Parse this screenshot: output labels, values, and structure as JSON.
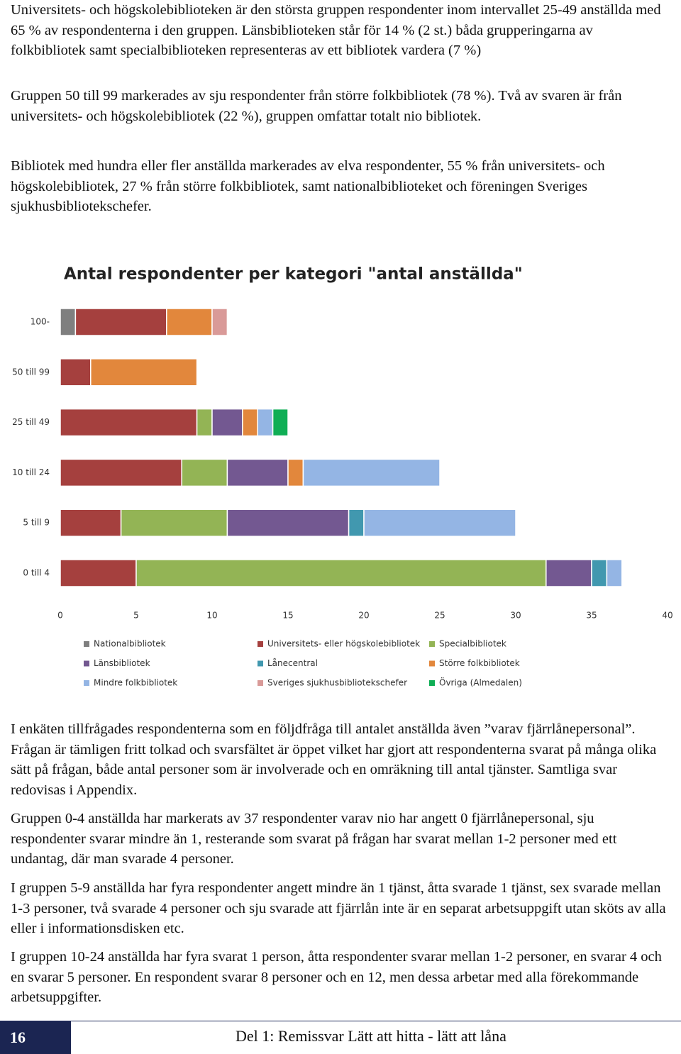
{
  "paragraphs_top": [
    "Universitets- och högskolebiblioteken är den största gruppen respondenter inom intervallet 25-49 anställda med 65 % av respondenterna i den gruppen. Länsbiblioteken står för 14 % (2 st.) båda grupperingarna av folkbibliotek samt specialbiblioteken representeras av ett bibliotek vardera (7 %)",
    "Gruppen 50 till 99 markerades av sju respondenter från större folkbibliotek (78 %). Två av svaren är från universitets- och högskolebibliotek (22 %), gruppen omfattar totalt nio bibliotek.",
    "Bibliotek med hundra eller fler anställda markerades av elva respondenter, 55 % från universitets- och högskolebibliotek, 27 % från större folkbibliotek, samt nationalbiblioteket och föreningen Sveriges sjukhusbibliotekschefer."
  ],
  "chart_data": {
    "type": "stacked-bar-horizontal",
    "title": "Antal respondenter per kategori \"antal anställda\"",
    "categories": [
      "100-",
      "50 till 99",
      "25 till 49",
      "10 till 24",
      "5 till 9",
      "0 till 4"
    ],
    "series": [
      {
        "name": "Nationalbibliotek",
        "color": "#7f7f7f",
        "values": [
          1,
          0,
          0,
          0,
          0,
          0
        ]
      },
      {
        "name": "Universitets- eller högskolebibliotek",
        "color": "#a5403e",
        "values": [
          6,
          2,
          9,
          8,
          4,
          5
        ]
      },
      {
        "name": "Specialbibliotek",
        "color": "#93b455",
        "values": [
          0,
          0,
          1,
          3,
          7,
          27
        ]
      },
      {
        "name": "Länsbibliotek",
        "color": "#735891",
        "values": [
          0,
          0,
          2,
          4,
          8,
          3
        ]
      },
      {
        "name": "Lånecentral",
        "color": "#4198af",
        "values": [
          0,
          0,
          0,
          0,
          1,
          1
        ]
      },
      {
        "name": "Större folkbibliotek",
        "color": "#e2873c",
        "values": [
          3,
          7,
          1,
          1,
          0,
          0
        ]
      },
      {
        "name": "Mindre folkbibliotek",
        "color": "#94b5e4",
        "values": [
          0,
          0,
          1,
          9,
          10,
          1
        ]
      },
      {
        "name": "Sveriges sjukhusbibliotekschefer",
        "color": "#d99a98",
        "values": [
          1,
          0,
          0,
          0,
          0,
          0
        ]
      },
      {
        "name": "Övriga (Almedalen)",
        "color": "#0fae55",
        "values": [
          0,
          0,
          1,
          0,
          0,
          0
        ]
      }
    ],
    "xlim": [
      0,
      40
    ],
    "xticks": [
      0,
      5,
      10,
      15,
      20,
      25,
      30,
      35,
      40
    ],
    "grid": false,
    "legend": "bottom"
  },
  "paragraphs_bottom": [
    "I enkäten tillfrågades respondenterna som en följdfråga till antalet anställda även ”varav fjärrlånepersonal”. Frågan är tämligen fritt tolkad och svarsfältet är öppet vilket har gjort att respondenterna svarat på många olika sätt på frågan, både antal personer som är involverade och en omräkning till antal tjänster. Samtliga svar redovisas i Appendix.",
    "Gruppen 0-4 anställda har markerats av 37 respondenter varav nio har angett 0 fjärrlånepersonal, sju respondenter svarar mindre än 1, resterande som svarat på frågan har svarat mellan 1-2 personer med ett undantag, där man svarade 4 personer.",
    "I gruppen 5-9 anställda har fyra respondenter angett mindre än 1 tjänst, åtta svarade 1 tjänst, sex svarade mellan 1-3 personer, två svarade 4 personer och sju svarade att fjärrlån inte är en separat arbetsuppgift utan sköts av alla eller i informationsdisken etc.",
    "I gruppen 10-24 anställda har fyra svarat 1 person, åtta respondenter svarar mellan 1-2 personer, en svarar 4 och en svarar 5 personer. En respondent svarar 8 personer och en 12, men dessa arbetar med alla förekommande arbetsuppgifter."
  ],
  "footer": {
    "page_number": "16",
    "title": "Del 1: Remissvar Lätt att hitta - lätt att låna"
  }
}
